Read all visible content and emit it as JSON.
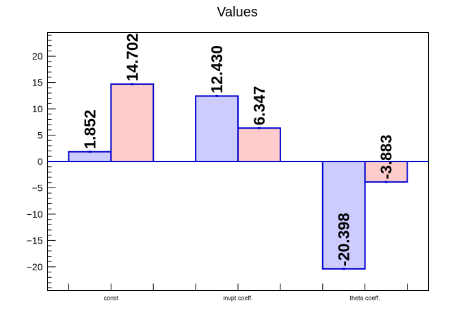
{
  "chart_data": {
    "type": "bar",
    "title": "Values",
    "xlabel": "",
    "ylabel": "",
    "categories": [
      "const",
      "invpt coeff.",
      "theta coeff."
    ],
    "series": [
      {
        "values": [
          1.852,
          12.43,
          -20.398
        ],
        "labels": [
          "1.852",
          "12.430",
          "-20.398"
        ],
        "color": "#ccccff",
        "edge_color": "#0000cc"
      },
      {
        "values": [
          14.702,
          6.347,
          -3.883
        ],
        "labels": [
          "14.702",
          "6.347",
          "-3.883"
        ],
        "color": "#ffcccc",
        "edge_color": "#0000cc"
      }
    ],
    "ylim": [
      -24.5,
      24.5
    ],
    "yticks": [
      -20,
      -15,
      -10,
      -5,
      0,
      5,
      10,
      15,
      20
    ],
    "ytick_labels": [
      "−20",
      "−15",
      "−10",
      "−5",
      "0",
      "5",
      "10",
      "15",
      "20"
    ],
    "grid": false,
    "legend": "none"
  }
}
